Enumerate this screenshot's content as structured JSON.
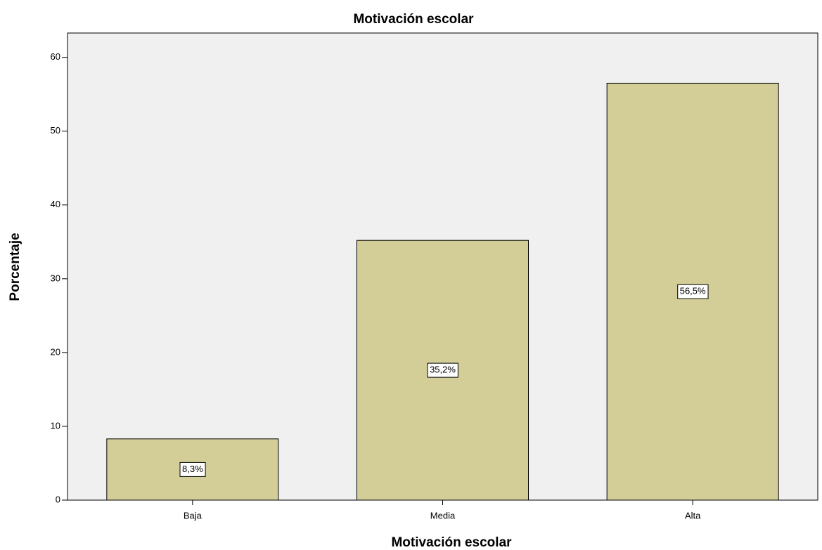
{
  "chart_data": {
    "type": "bar",
    "title": "Motivación escolar",
    "x_label": "Motivación escolar",
    "y_label": "Porcentaje",
    "categories": [
      "Baja",
      "Media",
      "Alta"
    ],
    "values": [
      8.3,
      35.2,
      56.5
    ],
    "value_labels": [
      "8,3%",
      "35,2%",
      "56,5%"
    ],
    "color": "#d3ce97",
    "ylim": [
      0,
      63.3
    ],
    "yticks": [
      0,
      10,
      20,
      30,
      40,
      50,
      60
    ],
    "grid": false
  }
}
